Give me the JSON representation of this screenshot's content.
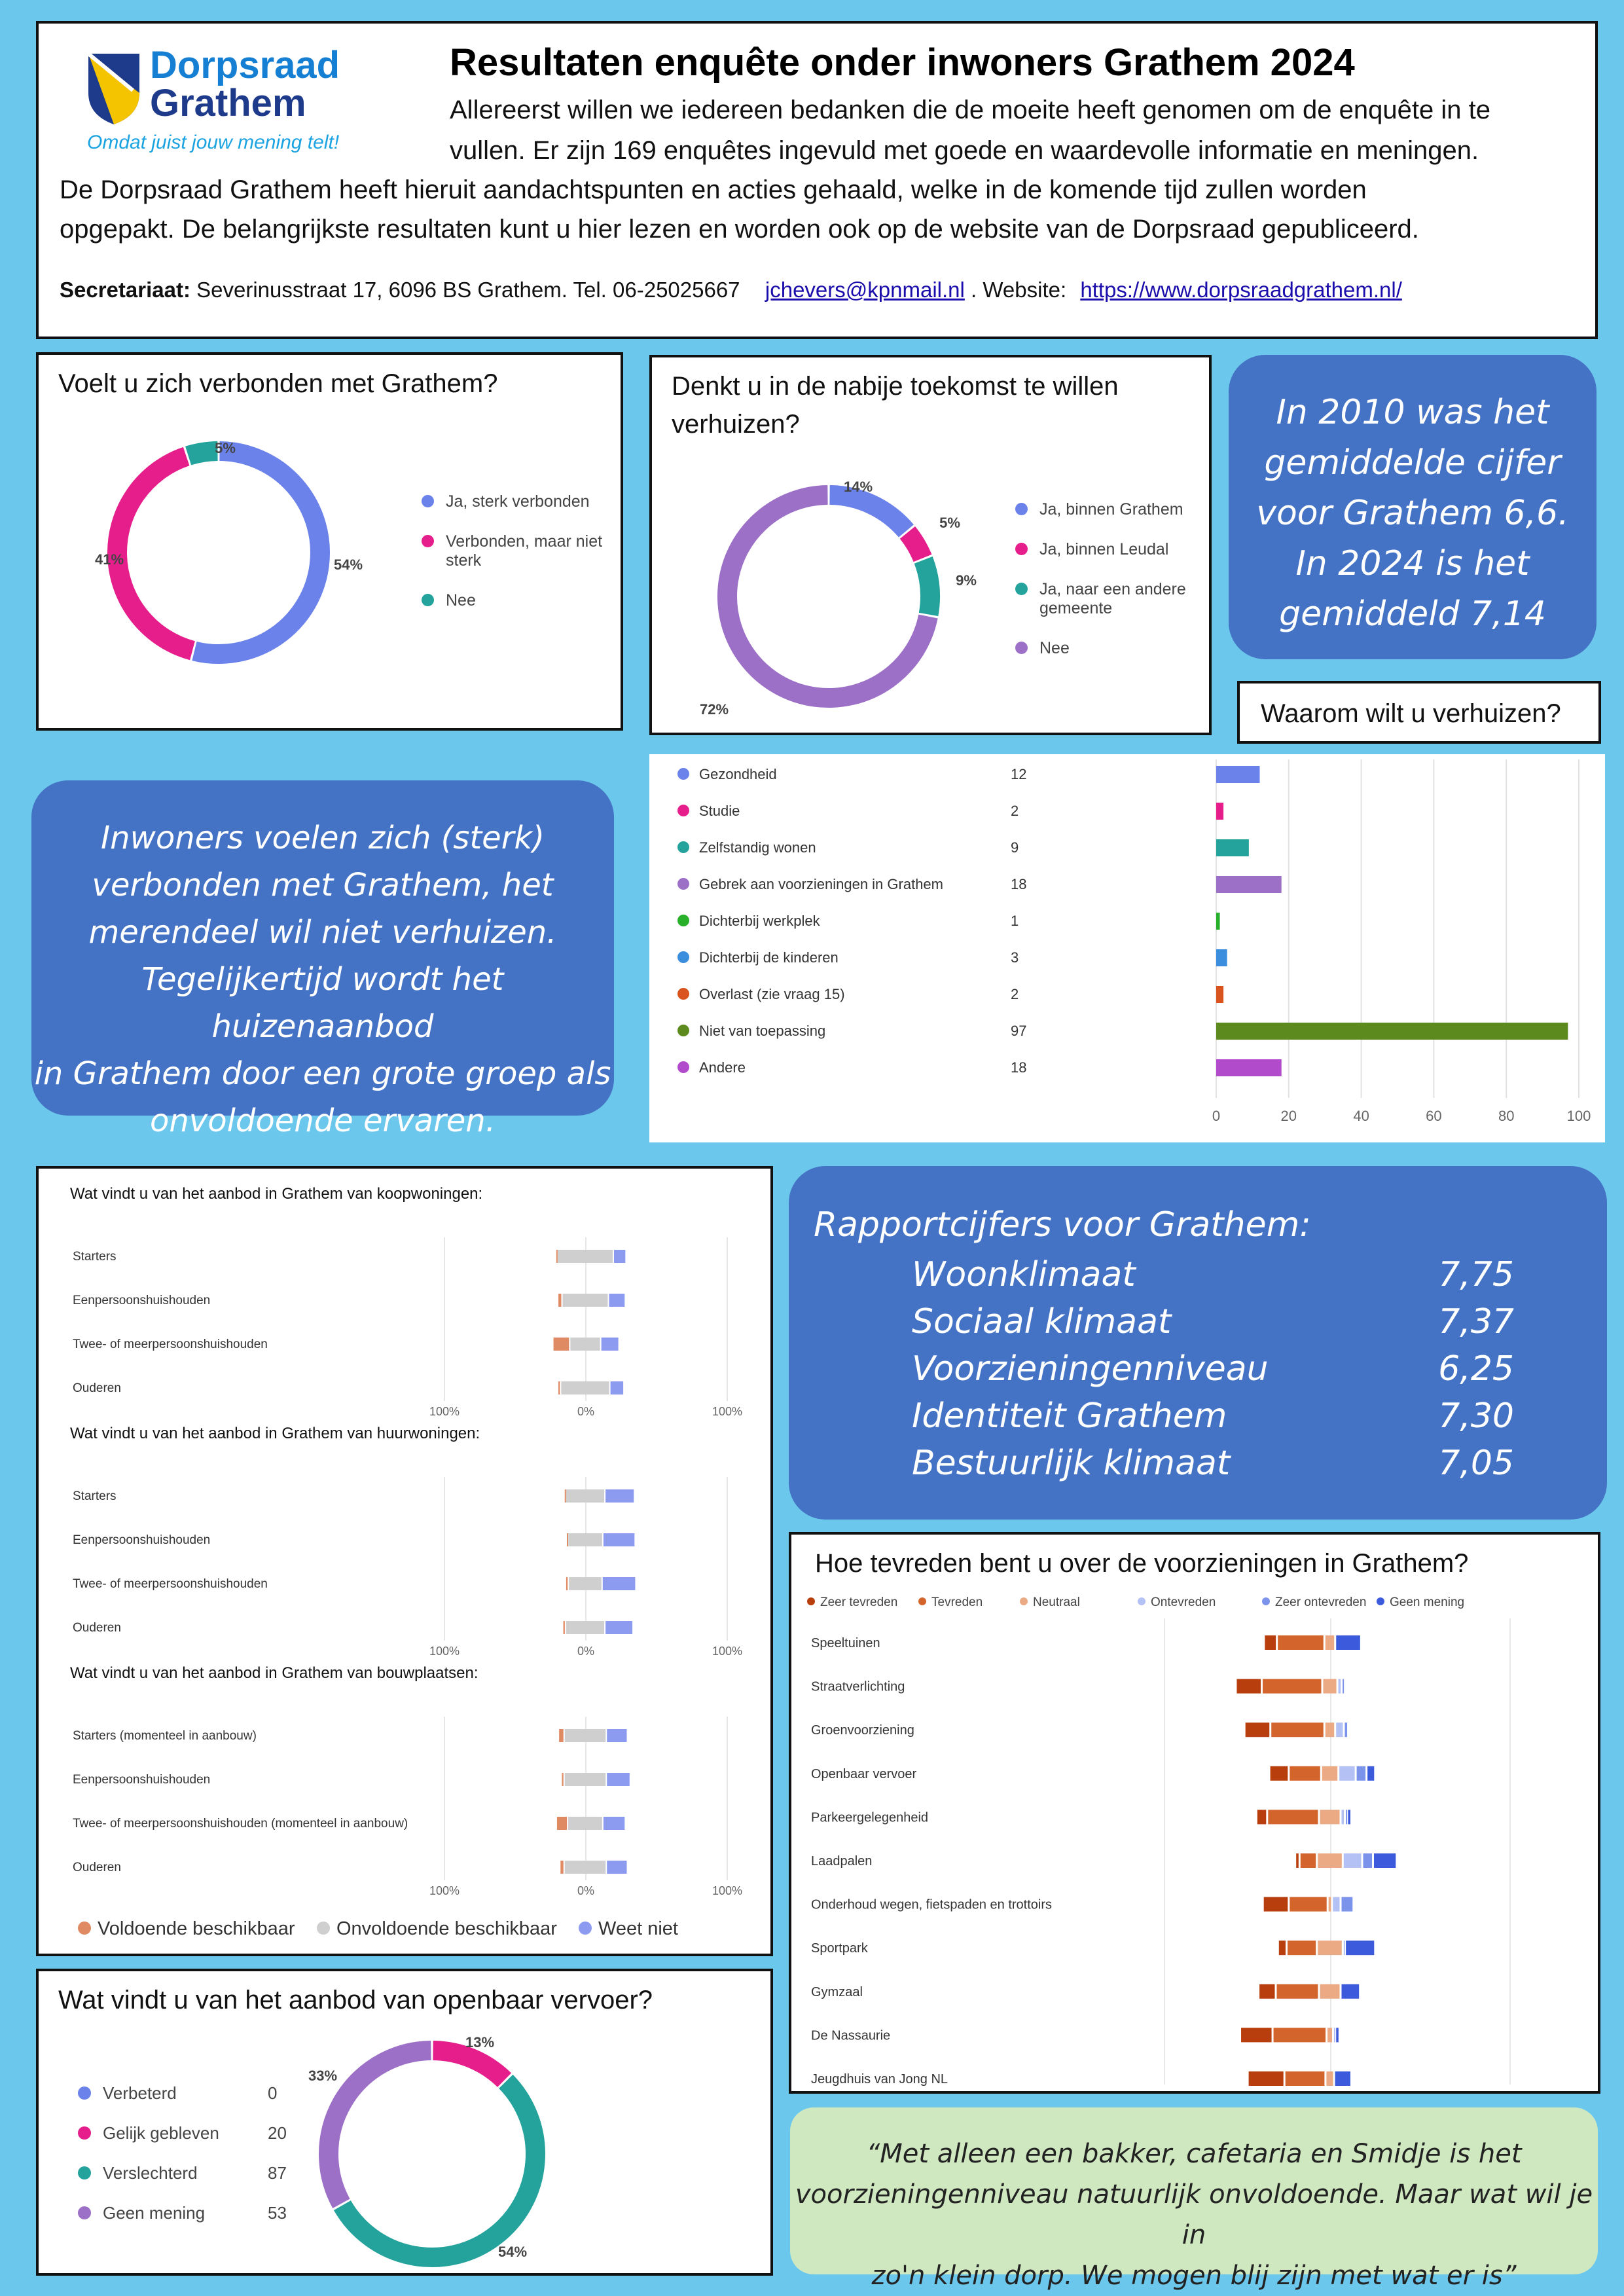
{
  "header": {
    "logo": {
      "line1": "Dorpsraad",
      "line2": "Grathem",
      "tagline": "Omdat juist jouw mening telt!"
    },
    "title": "Resultaten enquête onder inwoners Grathem 2024",
    "intro1": "Allereerst willen we iedereen bedanken die de moeite heeft genomen om de enquête in te",
    "intro2": "vullen. Er zijn 169 enquêtes ingevuld met goede en waardevolle informatie en meningen.",
    "intro3": "De Dorpsraad Grathem heeft hieruit aandachtspunten en acties gehaald, welke in de komende tijd zullen worden",
    "intro4": "opgepakt. De belangrijkste resultaten kunt u hier lezen en worden ook op de website van de Dorpsraad gepubliceerd.",
    "secretariat_label": "Secretariaat:",
    "secretariat_text": "Severinusstraat 17, 6096 BS Grathem. Tel. 06-25025667",
    "email": "jchevers@kpnmail.nl",
    "website_label": ". Website:",
    "website": "https://www.dorpsraadgrathem.nl/"
  },
  "q1": {
    "title": "Voelt u zich verbonden met Grathem?",
    "legend": [
      "Ja, sterk verbonden",
      "Verbonden, maar niet sterk",
      "Nee"
    ],
    "labels": [
      "54%",
      "41%",
      "5%"
    ]
  },
  "q2": {
    "title1": "Denkt u in de nabije toekomst te willen",
    "title2": "verhuizen?",
    "legend": [
      "Ja, binnen Grathem",
      "Ja, binnen Leudal",
      "Ja, naar een andere gemeente",
      "Nee"
    ],
    "labels": [
      "14%",
      "5%",
      "9%",
      "72%"
    ]
  },
  "callout_2010": [
    "In 2010 was het",
    "gemiddelde cijfer",
    "voor Grathem 6,6.",
    "In 2024 is het",
    "gemiddeld 7,14"
  ],
  "q3": {
    "title": "Waarom wilt u verhuizen?"
  },
  "callout_verbonden": [
    "Inwoners voelen zich (sterk)",
    "verbonden met Grathem, het",
    "merendeel wil niet verhuizen.",
    "Tegelijkertijd wordt het huizenaanbod",
    "in Grathem door een grote groep als",
    "onvoldoende ervaren."
  ],
  "housing": {
    "title_koop": "Wat vindt u van het aanbod in Grathem van koopwoningen:",
    "title_huur": "Wat vindt u van het aanbod in Grathem van huurwoningen:",
    "title_bouw": "Wat vindt u van het aanbod in Grathem van bouwplaatsen:",
    "axis": [
      "100%",
      "0%",
      "100%"
    ],
    "legend": [
      "Voldoende beschikbaar",
      "Onvoldoende beschikbaar",
      "Weet niet"
    ]
  },
  "rapport": {
    "title": "Rapportcijfers voor Grathem:",
    "items": [
      {
        "label": "Woonklimaat",
        "value": "7,75"
      },
      {
        "label": "Sociaal klimaat",
        "value": "7,37"
      },
      {
        "label": "Voorzieningenniveau",
        "value": "6,25"
      },
      {
        "label": "Identiteit Grathem",
        "value": "7,30"
      },
      {
        "label": "Bestuurlijk klimaat",
        "value": "7,05"
      }
    ]
  },
  "voorz": {
    "title": "Hoe tevreden bent u over de voorzieningen in Grathem?"
  },
  "ov": {
    "title": "Wat vindt u van het aanbod van openbaar vervoer?",
    "labels": [
      "13%",
      "33%",
      "54%"
    ]
  },
  "quote": [
    "“Met alleen een bakker, cafetaria en Smidje is het",
    "voorzieningenniveau natuurlijk onvoldoende. Maar wat wil je in",
    "zo'n klein dorp. We mogen blij zijn met wat er is”"
  ],
  "colors": {
    "primary": "#4472c4",
    "background": "#6cc7ec",
    "quote_bg": "#cfe8c0"
  },
  "chart_data": [
    {
      "type": "pie",
      "subtype": "donut",
      "categories": [
        "Ja, sterk verbonden",
        "Verbonden, maar niet sterk",
        "Nee"
      ],
      "values": [
        54,
        41,
        5
      ],
      "colors": [
        "#6b82ea",
        "#e61e8c",
        "#23a39b"
      ]
    },
    {
      "type": "pie",
      "subtype": "donut",
      "categories": [
        "Ja, binnen Grathem",
        "Ja, binnen Leudal",
        "Ja, naar een andere gemeente",
        "Nee"
      ],
      "values": [
        14,
        5,
        9,
        72
      ],
      "colors": [
        "#6b82ea",
        "#e61e8c",
        "#23a39b",
        "#9c70c6"
      ]
    },
    {
      "type": "bar",
      "orientation": "horizontal",
      "title": "Waarom wilt u verhuizen?",
      "categories": [
        "Gezondheid",
        "Studie",
        "Zelfstandig wonen",
        "Gebrek aan voorzieningen in Grathem",
        "Dichterbij werkplek",
        "Dichterbij de kinderen",
        "Overlast (zie vraag 15)",
        "Niet van toepassing",
        "Andere"
      ],
      "values": [
        12,
        2,
        9,
        18,
        1,
        3,
        2,
        97,
        18
      ],
      "colors": [
        "#6b82ea",
        "#e61e8c",
        "#23a39b",
        "#9c70c6",
        "#28b02a",
        "#3b8ede",
        "#d8531d",
        "#5d8a1f",
        "#b14bcb"
      ],
      "xlim": [
        0,
        100
      ],
      "ticks": [
        0,
        20,
        40,
        60,
        80,
        100
      ]
    },
    {
      "type": "bar",
      "stacked": true,
      "diverging": true,
      "categories": [
        "Starters",
        "Eenpersoonshuishouden",
        "Twee- of meerpersoonshuishouden",
        "Ouderen"
      ],
      "series": [
        {
          "name": "Voldoende beschikbaar",
          "values": [
            1,
            3,
            12,
            2
          ]
        },
        {
          "name": "Onvoldoende beschikbaar",
          "values": [
            40,
            33,
            22,
            35
          ]
        },
        {
          "name": "Weet niet",
          "values": [
            9,
            12,
            13,
            10
          ]
        }
      ]
    },
    {
      "type": "bar",
      "stacked": true,
      "diverging": true,
      "categories": [
        "Starters",
        "Eenpersoonshuishouden",
        "Twee- of meerpersoonshuishouden",
        "Ouderen"
      ],
      "series": [
        {
          "name": "Voldoende beschikbaar",
          "values": [
            1,
            1,
            2,
            2
          ]
        },
        {
          "name": "Onvoldoende beschikbaar",
          "values": [
            28,
            25,
            24,
            28
          ]
        },
        {
          "name": "Weet niet",
          "values": [
            21,
            23,
            24,
            20
          ]
        }
      ]
    },
    {
      "type": "bar",
      "stacked": true,
      "diverging": true,
      "categories": [
        "Starters (momenteel in aanbouw)",
        "Eenpersoonshuishouden",
        "Twee- of meerpersoonshuishouden (momenteel in aanbouw)",
        "Ouderen"
      ],
      "series": [
        {
          "name": "Voldoende beschikbaar",
          "values": [
            4,
            2,
            8,
            3
          ]
        },
        {
          "name": "Onvoldoende beschikbaar",
          "values": [
            30,
            30,
            25,
            30
          ]
        },
        {
          "name": "Weet niet",
          "values": [
            15,
            17,
            16,
            15
          ]
        }
      ]
    },
    {
      "type": "bar",
      "stacked": true,
      "diverging": true,
      "title": "Hoe tevreden bent u over de voorzieningen in Grathem?",
      "categories": [
        "Speeltuinen",
        "Straatverlichting",
        "Groenvoorziening",
        "Openbaar vervoer",
        "Parkeergelegenheid",
        "Laadpalen",
        "Onderhoud wegen, fietspaden en trottoirs",
        "Sportpark",
        "Gymzaal",
        "De Nassaurie",
        "Jeugdhuis van Jong NL"
      ],
      "series": [
        {
          "name": "Zeer tevreden",
          "values": [
            6,
            12,
            12,
            9,
            5,
            2,
            12,
            4,
            8,
            15,
            17
          ]
        },
        {
          "name": "Tevreden",
          "values": [
            22,
            28,
            25,
            15,
            24,
            8,
            18,
            14,
            20,
            25,
            19
          ]
        },
        {
          "name": "Neutraal",
          "values": [
            5,
            7,
            5,
            8,
            10,
            12,
            2,
            12,
            10,
            3,
            4
          ]
        },
        {
          "name": "Ontevreden",
          "values": [
            0,
            2,
            4,
            8,
            2,
            9,
            4,
            1,
            0,
            1,
            0
          ]
        },
        {
          "name": "Zeer ontevreden",
          "values": [
            0,
            1,
            2,
            5,
            1,
            5,
            6,
            0,
            0,
            0,
            0
          ]
        },
        {
          "name": "Geen mening",
          "values": [
            12,
            0,
            0,
            4,
            2,
            11,
            0,
            14,
            9,
            2,
            8
          ]
        }
      ]
    },
    {
      "type": "pie",
      "subtype": "donut",
      "categories": [
        "Verbeterd",
        "Gelijk gebleven",
        "Verslechterd",
        "Geen mening"
      ],
      "values": [
        0,
        20,
        87,
        53
      ],
      "colors": [
        "#6b82ea",
        "#e61e8c",
        "#23a39b",
        "#9c70c6"
      ]
    }
  ]
}
